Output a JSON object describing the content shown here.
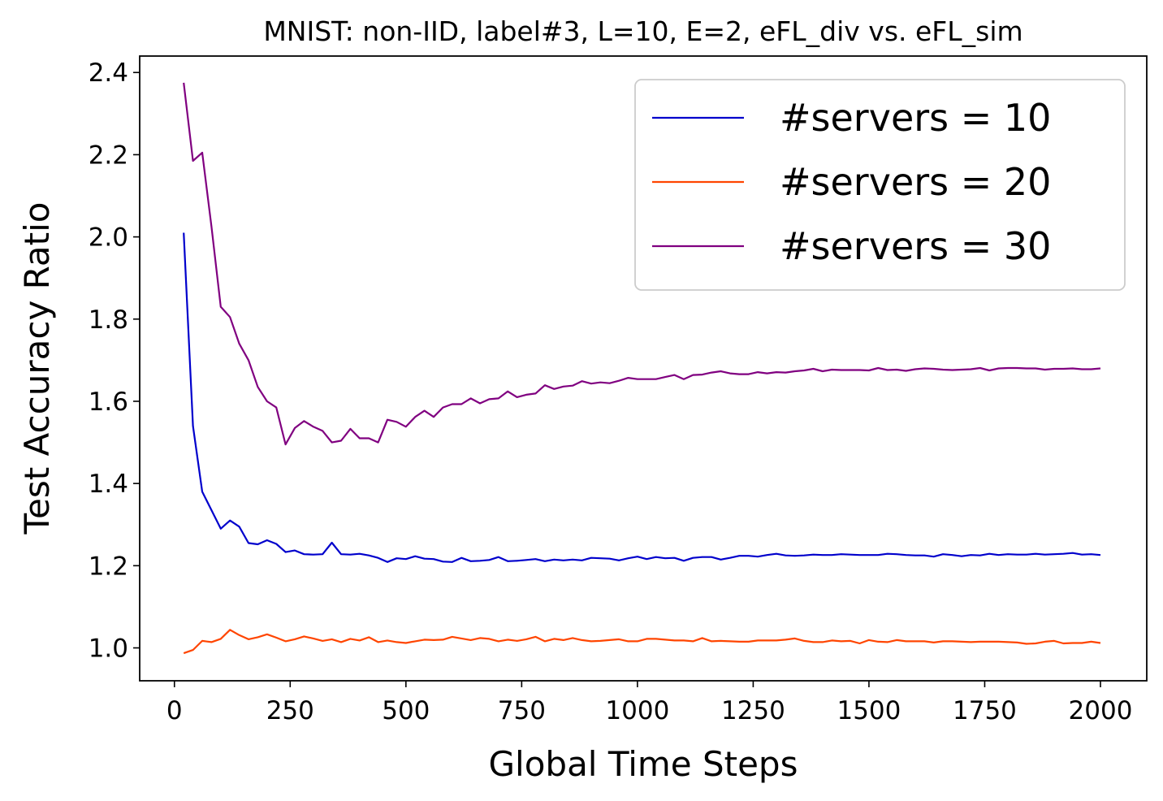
{
  "chart_data": {
    "type": "line",
    "title": "MNIST: non-IID, label#3, L=10, E=2, eFL_div vs. eFL_sim",
    "xlabel": "Global Time Steps",
    "ylabel": "Test Accuracy Ratio",
    "xlim": [
      -75,
      2100
    ],
    "ylim": [
      0.92,
      2.44
    ],
    "xticks": [
      0,
      250,
      500,
      750,
      1000,
      1250,
      1500,
      1750,
      2000
    ],
    "yticks": [
      1.0,
      1.2,
      1.4,
      1.6,
      1.8,
      2.0,
      2.2,
      2.4
    ],
    "ytick_labels": [
      "1.0",
      "1.2",
      "1.4",
      "1.6",
      "1.8",
      "2.0",
      "2.2",
      "2.4"
    ],
    "legend_position": "top-right",
    "grid": false,
    "x": [
      20,
      40,
      60,
      80,
      100,
      120,
      140,
      160,
      180,
      200,
      220,
      240,
      260,
      280,
      300,
      320,
      340,
      360,
      380,
      400,
      420,
      440,
      460,
      480,
      500,
      520,
      540,
      560,
      580,
      600,
      620,
      640,
      660,
      680,
      700,
      720,
      740,
      760,
      780,
      800,
      820,
      840,
      860,
      880,
      900,
      920,
      940,
      960,
      980,
      1000,
      1020,
      1040,
      1060,
      1080,
      1100,
      1120,
      1140,
      1160,
      1180,
      1200,
      1220,
      1240,
      1260,
      1280,
      1300,
      1320,
      1340,
      1360,
      1380,
      1400,
      1420,
      1440,
      1460,
      1480,
      1500,
      1520,
      1540,
      1560,
      1580,
      1600,
      1620,
      1640,
      1660,
      1680,
      1700,
      1720,
      1740,
      1760,
      1780,
      1800,
      1820,
      1840,
      1860,
      1880,
      1900,
      1920,
      1940,
      1960,
      1980,
      2000
    ],
    "series": [
      {
        "name": "#servers = 10",
        "color": "#0000cc",
        "values": [
          2.01,
          1.54,
          1.38,
          1.335,
          1.29,
          1.31,
          1.295,
          1.255,
          1.252,
          1.262,
          1.253,
          1.233,
          1.237,
          1.228,
          1.227,
          1.228,
          1.256,
          1.228,
          1.227,
          1.229,
          1.225,
          1.219,
          1.209,
          1.218,
          1.216,
          1.223,
          1.217,
          1.216,
          1.21,
          1.209,
          1.219,
          1.211,
          1.212,
          1.214,
          1.221,
          1.211,
          1.212,
          1.214,
          1.216,
          1.211,
          1.215,
          1.213,
          1.215,
          1.213,
          1.219,
          1.218,
          1.217,
          1.213,
          1.218,
          1.222,
          1.216,
          1.221,
          1.218,
          1.219,
          1.212,
          1.219,
          1.221,
          1.221,
          1.215,
          1.219,
          1.224,
          1.224,
          1.222,
          1.226,
          1.229,
          1.225,
          1.224,
          1.225,
          1.227,
          1.226,
          1.226,
          1.228,
          1.227,
          1.226,
          1.226,
          1.226,
          1.229,
          1.228,
          1.226,
          1.225,
          1.225,
          1.222,
          1.228,
          1.226,
          1.223,
          1.226,
          1.225,
          1.229,
          1.226,
          1.228,
          1.227,
          1.227,
          1.229,
          1.227,
          1.228,
          1.229,
          1.231,
          1.227,
          1.228,
          1.226
        ]
      },
      {
        "name": "#servers = 20",
        "color": "#ff4500",
        "values": [
          0.987,
          0.995,
          1.017,
          1.014,
          1.022,
          1.044,
          1.031,
          1.021,
          1.026,
          1.033,
          1.025,
          1.016,
          1.021,
          1.028,
          1.023,
          1.017,
          1.021,
          1.014,
          1.022,
          1.018,
          1.026,
          1.014,
          1.018,
          1.014,
          1.012,
          1.016,
          1.02,
          1.019,
          1.02,
          1.027,
          1.023,
          1.019,
          1.024,
          1.022,
          1.016,
          1.02,
          1.017,
          1.021,
          1.027,
          1.016,
          1.022,
          1.019,
          1.024,
          1.019,
          1.016,
          1.017,
          1.019,
          1.021,
          1.016,
          1.016,
          1.022,
          1.022,
          1.02,
          1.018,
          1.018,
          1.016,
          1.024,
          1.016,
          1.017,
          1.016,
          1.015,
          1.015,
          1.018,
          1.018,
          1.018,
          1.02,
          1.023,
          1.017,
          1.014,
          1.014,
          1.018,
          1.016,
          1.017,
          1.011,
          1.019,
          1.015,
          1.014,
          1.019,
          1.016,
          1.016,
          1.016,
          1.013,
          1.016,
          1.016,
          1.015,
          1.014,
          1.015,
          1.015,
          1.015,
          1.014,
          1.013,
          1.01,
          1.011,
          1.015,
          1.017,
          1.011,
          1.012,
          1.012,
          1.015,
          1.012
        ]
      },
      {
        "name": "#servers = 30",
        "color": "#800080",
        "values": [
          2.375,
          2.185,
          2.205,
          2.025,
          1.83,
          1.805,
          1.74,
          1.7,
          1.635,
          1.6,
          1.585,
          1.495,
          1.535,
          1.552,
          1.538,
          1.528,
          1.5,
          1.504,
          1.533,
          1.51,
          1.51,
          1.5,
          1.555,
          1.55,
          1.538,
          1.562,
          1.577,
          1.562,
          1.585,
          1.593,
          1.593,
          1.607,
          1.595,
          1.605,
          1.607,
          1.624,
          1.61,
          1.616,
          1.619,
          1.639,
          1.63,
          1.636,
          1.638,
          1.649,
          1.643,
          1.646,
          1.644,
          1.65,
          1.657,
          1.654,
          1.654,
          1.654,
          1.659,
          1.664,
          1.654,
          1.664,
          1.665,
          1.67,
          1.673,
          1.668,
          1.666,
          1.666,
          1.671,
          1.668,
          1.671,
          1.67,
          1.673,
          1.675,
          1.679,
          1.673,
          1.677,
          1.676,
          1.676,
          1.676,
          1.675,
          1.681,
          1.676,
          1.677,
          1.674,
          1.678,
          1.68,
          1.679,
          1.677,
          1.676,
          1.677,
          1.678,
          1.681,
          1.675,
          1.68,
          1.681,
          1.681,
          1.68,
          1.68,
          1.677,
          1.679,
          1.679,
          1.68,
          1.678,
          1.678,
          1.68
        ]
      }
    ]
  }
}
